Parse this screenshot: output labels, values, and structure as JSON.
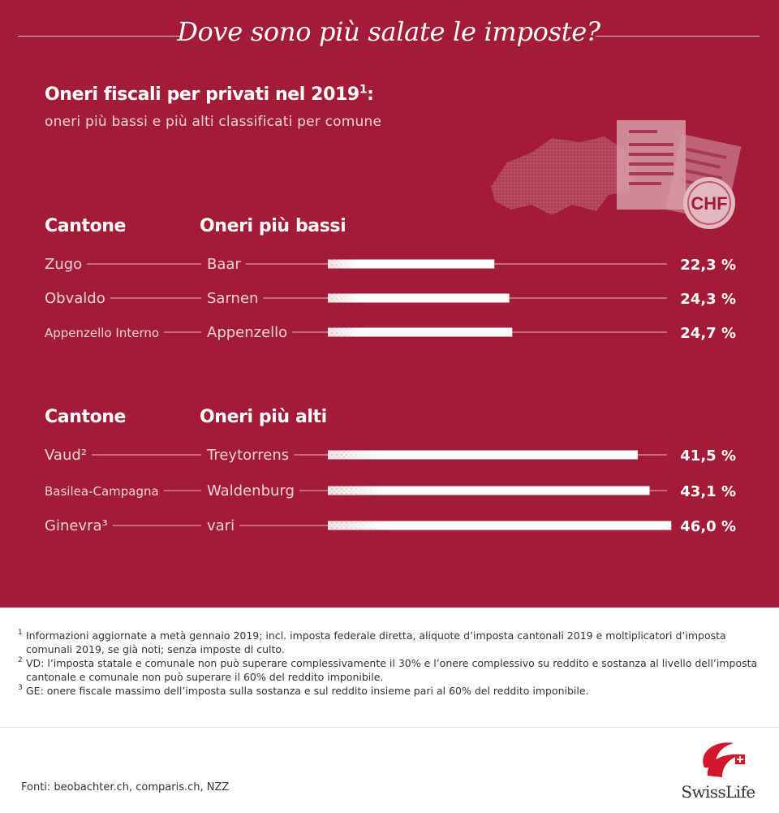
{
  "title": "Dove sono più salate le imposte?",
  "subtitle": {
    "main": "Oneri fiscali per privati nel 2019",
    "sup": "1",
    "tail": ":"
  },
  "subtitle2": "oneri più bassi e più alti classificati per comune",
  "illustration": {
    "badge": "CHF"
  },
  "colors": {
    "background": "#a21b37",
    "bar": "#f3e6e8",
    "text": "#ffffff"
  },
  "groups": [
    {
      "header_canton": "Cantone",
      "header_values": "Oneri più bassi"
    },
    {
      "header_canton": "Cantone",
      "header_values": "Oneri più alti"
    }
  ],
  "chart_data": {
    "type": "bar",
    "orientation": "horizontal",
    "value_unit": "%",
    "xlim": [
      0,
      50
    ],
    "rows": [
      {
        "group": "Oneri più bassi",
        "canton": "Zugo",
        "commune": "Baar",
        "value": 22.3,
        "label": "22,3 %"
      },
      {
        "group": "Oneri più bassi",
        "canton": "Obvaldo",
        "commune": "Sarnen",
        "value": 24.3,
        "label": "24,3 %"
      },
      {
        "group": "Oneri più bassi",
        "canton": "Appenzello Interno",
        "commune": "Appenzello",
        "value": 24.7,
        "label": "24,7 %"
      },
      {
        "group": "Oneri più alti",
        "canton": "Vaud²",
        "commune": "Treytorrens",
        "value": 41.5,
        "label": "41,5 %"
      },
      {
        "group": "Oneri più alti",
        "canton": "Basilea-Campagna",
        "commune": "Waldenburg",
        "value": 43.1,
        "label": "43,1 %"
      },
      {
        "group": "Oneri più alti",
        "canton": "Ginevra³",
        "commune": "vari",
        "value": 46.0,
        "label": "46,0 %"
      }
    ]
  },
  "footnotes": [
    {
      "mark": "1",
      "text": "Informazioni aggiornate a metà gennaio 2019; incl. imposta federale diretta, aliquote d’imposta cantonali 2019 e moltiplicatori d’imposta comunali 2019, se già noti; senza imposte di culto."
    },
    {
      "mark": "2",
      "text": "VD: l’imposta statale e comunale non può superare complessivamente il 30% e l’onere complessivo su reddito e sostanza al livello dell’imposta cantonale e comunale non può superare il 60% del reddito imponibile."
    },
    {
      "mark": "3",
      "text": "GE: onere fiscale massimo dell’imposta sulla sostanza e sul reddito insieme pari al 60% del reddito imponibile."
    }
  ],
  "sources": "Fonti: beobachter.ch, comparis.ch, NZZ",
  "logo": {
    "text": "SwissLife"
  }
}
